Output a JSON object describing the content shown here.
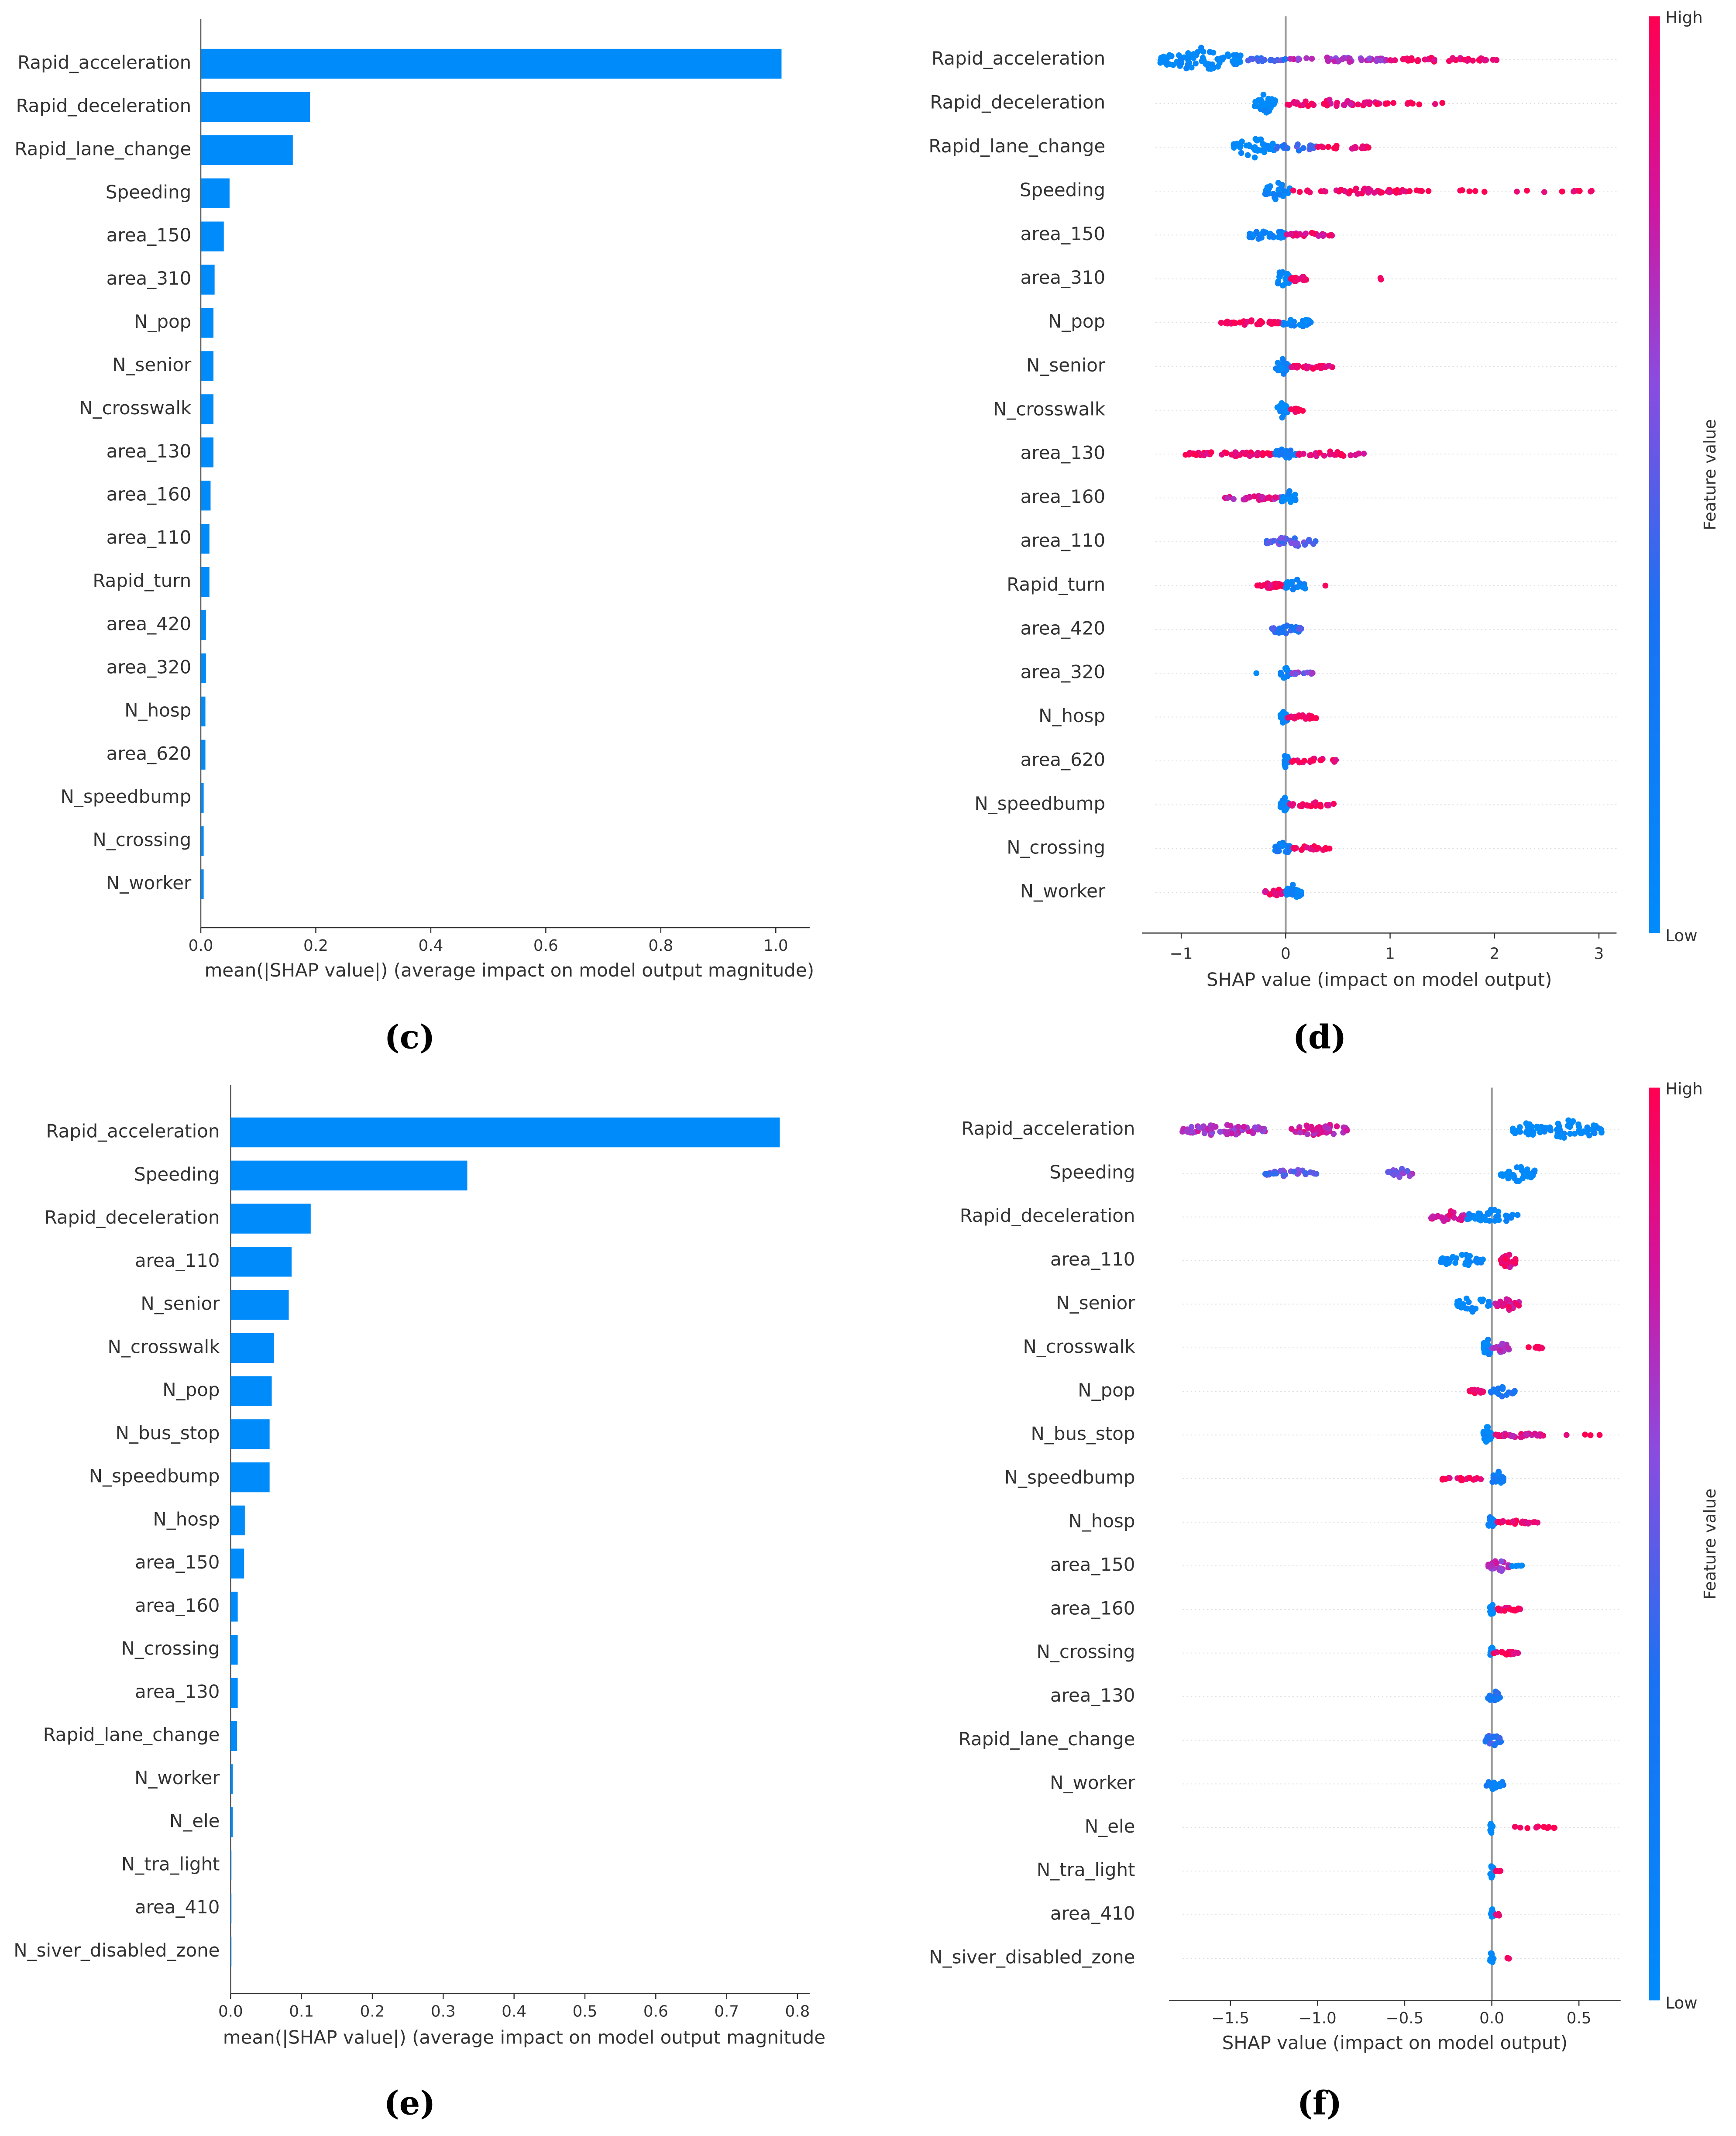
{
  "chart_data": [
    {
      "id": "c",
      "type": "bar",
      "caption": "(c)",
      "title": "",
      "xlabel": "mean(|SHAP value|) (average impact on model output magnitude)",
      "xlim": [
        0,
        1.06
      ],
      "xticks": [
        "0.0",
        "0.2",
        "0.4",
        "0.6",
        "0.8",
        "1.0"
      ],
      "bar_color": "#008bfb",
      "categories": [
        "Rapid_acceleration",
        "Rapid_deceleration",
        "Rapid_lane_change",
        "Speeding",
        "area_150",
        "area_310",
        "N_pop",
        "N_senior",
        "N_crosswalk",
        "area_130",
        "area_160",
        "area_110",
        "Rapid_turn",
        "area_420",
        "area_320",
        "N_hosp",
        "area_620",
        "N_speedbump",
        "N_crossing",
        "N_worker"
      ],
      "values": [
        1.01,
        0.19,
        0.16,
        0.05,
        0.04,
        0.024,
        0.022,
        0.022,
        0.022,
        0.022,
        0.017,
        0.015,
        0.015,
        0.009,
        0.009,
        0.008,
        0.008,
        0.005,
        0.005,
        0.005
      ]
    },
    {
      "id": "d",
      "type": "scatter",
      "caption": "(d)",
      "xlabel": "SHAP value (impact on model output)",
      "xlim": [
        -1.38,
        3.2
      ],
      "xticks": [
        "−1",
        "0",
        "1",
        "2",
        "3"
      ],
      "colorbar": {
        "label": "Feature value",
        "high": "High",
        "low": "Low",
        "low_color": "#008bfb",
        "high_color": "#ff0052"
      },
      "categories": [
        "Rapid_acceleration",
        "Rapid_deceleration",
        "Rapid_lane_change",
        "Speeding",
        "area_150",
        "area_310",
        "N_pop",
        "N_senior",
        "N_crosswalk",
        "area_130",
        "area_160",
        "area_110",
        "Rapid_turn",
        "area_420",
        "area_320",
        "N_hosp",
        "area_620",
        "N_speedbump",
        "N_crossing",
        "N_worker"
      ],
      "clusters_note": "per feature: [min SHAP, max SHAP, feature value 0-1, point count, spread]",
      "clusters": [
        [
          [
            -1.2,
            -0.4,
            0,
            80,
            9
          ],
          [
            -0.4,
            0,
            0.4,
            20,
            1.5
          ],
          [
            0,
            1,
            0.7,
            40,
            2
          ],
          [
            1,
            2.05,
            0.95,
            40,
            2
          ]
        ],
        [
          [
            -0.3,
            -0.1,
            0,
            30,
            8
          ],
          [
            0,
            0.9,
            0.9,
            40,
            3
          ],
          [
            0.95,
            1.55,
            1,
            12,
            1
          ]
        ],
        [
          [
            -0.5,
            -0.1,
            0,
            40,
            8
          ],
          [
            -0.1,
            0.3,
            0.4,
            20,
            3
          ],
          [
            0.3,
            0.8,
            0.95,
            20,
            2
          ]
        ],
        [
          [
            -0.2,
            0.05,
            0.1,
            25,
            7
          ],
          [
            0.05,
            1.3,
            0.95,
            50,
            2
          ],
          [
            1.3,
            3.0,
            1,
            18,
            1
          ]
        ],
        [
          [
            -0.35,
            0,
            0.1,
            30,
            5
          ],
          [
            0,
            0.45,
            0.9,
            25,
            2
          ]
        ],
        [
          [
            -0.1,
            0.05,
            0,
            20,
            7
          ],
          [
            0.05,
            0.2,
            0.95,
            15,
            3
          ],
          [
            0.8,
            0.98,
            1,
            2,
            1
          ]
        ],
        [
          [
            -0.62,
            -0.05,
            0.95,
            40,
            2
          ],
          [
            -0.05,
            0.25,
            0.1,
            30,
            4
          ]
        ],
        [
          [
            -0.1,
            0.05,
            0.1,
            20,
            6
          ],
          [
            0.05,
            0.45,
            0.95,
            25,
            2
          ]
        ],
        [
          [
            -0.1,
            0.03,
            0.05,
            20,
            6
          ],
          [
            0.03,
            0.17,
            0.95,
            10,
            1.5
          ]
        ],
        [
          [
            -1.0,
            -0.1,
            0.95,
            50,
            2
          ],
          [
            -0.1,
            0.1,
            0.2,
            25,
            6
          ],
          [
            0.1,
            0.75,
            0.9,
            25,
            2
          ]
        ],
        [
          [
            -0.6,
            -0.05,
            0.8,
            30,
            2
          ],
          [
            -0.05,
            0.1,
            0.05,
            20,
            6
          ]
        ],
        [
          [
            -0.2,
            0.3,
            0.5,
            40,
            4
          ]
        ],
        [
          [
            -0.3,
            0,
            0.95,
            30,
            2
          ],
          [
            0,
            0.2,
            0.1,
            20,
            6
          ],
          [
            0.38,
            0.38,
            1,
            1,
            0
          ]
        ],
        [
          [
            -0.15,
            0.15,
            0.4,
            30,
            4
          ]
        ],
        [
          [
            -0.28,
            -0.28,
            0,
            1,
            0
          ],
          [
            -0.05,
            0.05,
            0.1,
            15,
            5
          ],
          [
            0.05,
            0.3,
            0.6,
            10,
            1
          ]
        ],
        [
          [
            -0.05,
            0.02,
            0.05,
            15,
            6
          ],
          [
            0.02,
            0.32,
            0.95,
            20,
            2
          ]
        ],
        [
          [
            -0.02,
            0.03,
            0.05,
            15,
            6
          ],
          [
            0.03,
            0.52,
            0.95,
            18,
            2
          ]
        ],
        [
          [
            -0.05,
            0.03,
            0.05,
            15,
            6
          ],
          [
            0.03,
            0.48,
            0.95,
            20,
            2
          ]
        ],
        [
          [
            -0.1,
            0.05,
            0.2,
            20,
            5
          ],
          [
            0.05,
            0.42,
            0.95,
            18,
            2
          ]
        ],
        [
          [
            -0.2,
            0,
            0.9,
            20,
            3
          ],
          [
            0,
            0.15,
            0.1,
            20,
            6
          ]
        ]
      ]
    },
    {
      "id": "e",
      "type": "bar",
      "caption": "(e)",
      "xlabel": "mean(|SHAP value|) (average impact on model output magnitude",
      "xlim": [
        0,
        0.82
      ],
      "xticks": [
        "0.0",
        "0.1",
        "0.2",
        "0.3",
        "0.4",
        "0.5",
        "0.6",
        "0.7",
        "0.8"
      ],
      "bar_color": "#008bfb",
      "categories": [
        "Rapid_acceleration",
        "Speeding",
        "Rapid_deceleration",
        "area_110",
        "N_senior",
        "N_crosswalk",
        "N_pop",
        "N_bus_stop",
        "N_speedbump",
        "N_hosp",
        "area_150",
        "area_160",
        "N_crossing",
        "area_130",
        "Rapid_lane_change",
        "N_worker",
        "N_ele",
        "N_tra_light",
        "area_410",
        "N_siver_disabled_zone"
      ],
      "values": [
        0.775,
        0.334,
        0.113,
        0.086,
        0.082,
        0.061,
        0.058,
        0.055,
        0.055,
        0.02,
        0.019,
        0.01,
        0.01,
        0.01,
        0.009,
        0.003,
        0.003,
        0.001,
        0.001,
        0.001
      ]
    },
    {
      "id": "f",
      "type": "scatter",
      "caption": "(f)",
      "xlabel": "SHAP value (impact on model output)",
      "xlim": [
        -1.87,
        0.74
      ],
      "xticks": [
        "−1.5",
        "−1.0",
        "−0.5",
        "0.0",
        "0.5"
      ],
      "colorbar": {
        "label": "Feature value",
        "high": "High",
        "low": "Low",
        "low_color": "#008bfb",
        "high_color": "#ff0052"
      },
      "categories": [
        "Rapid_acceleration",
        "Speeding",
        "Rapid_deceleration",
        "area_110",
        "N_senior",
        "N_crosswalk",
        "N_pop",
        "N_bus_stop",
        "N_speedbump",
        "N_hosp",
        "area_150",
        "area_160",
        "N_crossing",
        "area_130",
        "Rapid_lane_change",
        "N_worker",
        "N_ele",
        "N_tra_light",
        "area_410",
        "N_siver_disabled_zone"
      ],
      "clusters_note": "per feature: [min SHAP, max SHAP, feature value 0-1, point count, spread]",
      "clusters": [
        [
          [
            -1.78,
            -1.3,
            0.7,
            60,
            5
          ],
          [
            -1.15,
            -0.82,
            0.8,
            40,
            5
          ],
          [
            0.1,
            0.3,
            0,
            30,
            5
          ],
          [
            0.3,
            0.63,
            0,
            50,
            8
          ]
        ],
        [
          [
            -1.3,
            -1.0,
            0.5,
            30,
            3
          ],
          [
            -0.6,
            -0.45,
            0.6,
            20,
            4
          ],
          [
            0.05,
            0.25,
            0,
            35,
            7
          ]
        ],
        [
          [
            -0.35,
            -0.15,
            0.8,
            30,
            5
          ],
          [
            -0.15,
            0.15,
            0.05,
            35,
            6
          ]
        ],
        [
          [
            -0.3,
            -0.05,
            0.05,
            30,
            5
          ],
          [
            0.05,
            0.14,
            0.9,
            25,
            6
          ]
        ],
        [
          [
            -0.2,
            -0.01,
            0.05,
            25,
            6
          ],
          [
            0.02,
            0.16,
            0.85,
            25,
            5
          ]
        ],
        [
          [
            -0.05,
            0.0,
            0.05,
            30,
            8
          ],
          [
            0,
            0.1,
            0.7,
            20,
            5
          ],
          [
            0.2,
            0.3,
            1,
            10,
            1
          ]
        ],
        [
          [
            -0.13,
            -0.05,
            0.95,
            15,
            2
          ],
          [
            -0.01,
            0.14,
            0.3,
            20,
            4
          ]
        ],
        [
          [
            -0.05,
            0,
            0.05,
            30,
            7
          ],
          [
            0,
            0.3,
            0.85,
            30,
            2
          ],
          [
            0.4,
            0.62,
            1,
            4,
            0.5
          ]
        ],
        [
          [
            -0.33,
            -0.05,
            0.95,
            20,
            1.5
          ],
          [
            0,
            0.07,
            0.2,
            20,
            7
          ]
        ],
        [
          [
            -0.03,
            0.02,
            0.2,
            12,
            5
          ],
          [
            0.02,
            0.28,
            0.95,
            25,
            1.5
          ]
        ],
        [
          [
            -0.02,
            0.1,
            0.7,
            25,
            5
          ],
          [
            0.1,
            0.18,
            0,
            5,
            1
          ]
        ],
        [
          [
            -0.01,
            0.01,
            0,
            12,
            6
          ],
          [
            0.01,
            0.18,
            0.95,
            20,
            1.5
          ]
        ],
        [
          [
            -0.01,
            0.01,
            0,
            12,
            6
          ],
          [
            0.01,
            0.15,
            0.95,
            15,
            1.5
          ]
        ],
        [
          [
            -0.03,
            0.05,
            0.3,
            15,
            5
          ]
        ],
        [
          [
            -0.05,
            0.06,
            0.4,
            18,
            5
          ]
        ],
        [
          [
            -0.06,
            0.08,
            0.2,
            15,
            5
          ]
        ],
        [
          [
            -0.01,
            0.01,
            0,
            10,
            6
          ],
          [
            0.07,
            0.37,
            1,
            12,
            1
          ]
        ],
        [
          [
            -0.01,
            0.01,
            0,
            8,
            6
          ],
          [
            0.01,
            0.05,
            1,
            5,
            1
          ]
        ],
        [
          [
            -0.01,
            0.01,
            0,
            8,
            6
          ],
          [
            0.01,
            0.05,
            1,
            5,
            1
          ]
        ],
        [
          [
            -0.01,
            0.01,
            0,
            8,
            6
          ],
          [
            0.04,
            0.18,
            1,
            4,
            0.5
          ]
        ]
      ]
    }
  ]
}
